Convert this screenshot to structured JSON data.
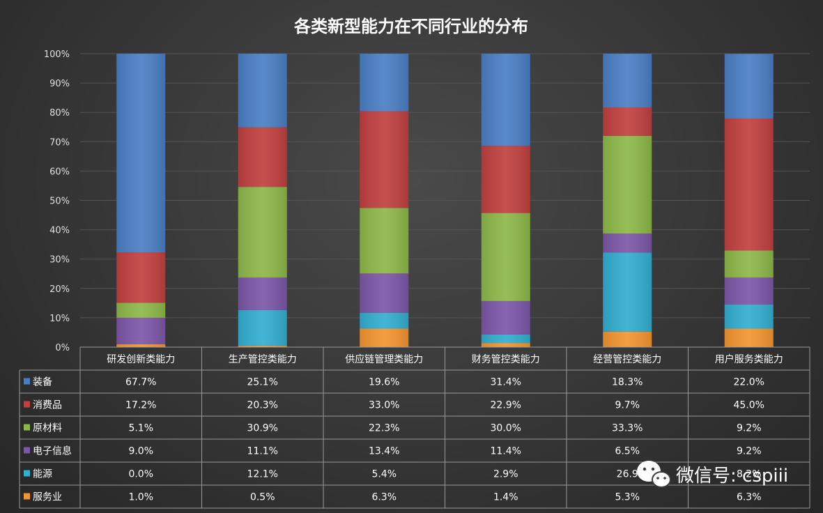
{
  "chart_data": {
    "type": "bar",
    "stacked": true,
    "title": "各类新型能力在不同行业的分布",
    "categories": [
      "研发创新类能力",
      "生产管控类能力",
      "供应链管理类能力",
      "财务管控类能力",
      "经营管控类能力",
      "用户服务类能力"
    ],
    "series": [
      {
        "name": "装备",
        "color": "#4a7fc4",
        "values": [
          67.7,
          25.1,
          19.6,
          31.4,
          18.3,
          22.0
        ],
        "labels": [
          "67.7%",
          "25.1%",
          "19.6%",
          "31.4%",
          "18.3%",
          "22.0%"
        ]
      },
      {
        "name": "消费品",
        "color": "#c0413f",
        "values": [
          17.2,
          20.3,
          33.0,
          22.9,
          9.7,
          45.0
        ],
        "labels": [
          "17.2%",
          "20.3%",
          "33.0%",
          "22.9%",
          "9.7%",
          "45.0%"
        ]
      },
      {
        "name": "原材料",
        "color": "#8db849",
        "values": [
          5.1,
          30.9,
          22.3,
          30.0,
          33.3,
          9.2
        ],
        "labels": [
          "5.1%",
          "30.9%",
          "22.3%",
          "30.0%",
          "33.3%",
          "9.2%"
        ]
      },
      {
        "name": "电子信息",
        "color": "#7c57a8",
        "values": [
          9.0,
          11.1,
          13.4,
          11.4,
          6.5,
          9.2
        ],
        "labels": [
          "9.0%",
          "11.1%",
          "13.4%",
          "11.4%",
          "6.5%",
          "9.2%"
        ]
      },
      {
        "name": "能源",
        "color": "#33aed0",
        "values": [
          0.0,
          12.1,
          5.4,
          2.9,
          26.9,
          8.2
        ],
        "labels": [
          "0.0%",
          "12.1%",
          "5.4%",
          "2.9%",
          "26.9",
          "8.2%"
        ]
      },
      {
        "name": "服务业",
        "color": "#f39531",
        "values": [
          1.0,
          0.5,
          6.3,
          1.4,
          5.3,
          6.3
        ],
        "labels": [
          "1.0%",
          "0.5%",
          "6.3%",
          "1.4%",
          "5.3%",
          "6.3%"
        ]
      }
    ],
    "ylim": [
      0,
      100
    ],
    "yticks": [
      "0%",
      "10%",
      "20%",
      "30%",
      "40%",
      "50%",
      "60%",
      "70%",
      "80%",
      "90%",
      "100%"
    ],
    "grid": true,
    "legend": "data-table"
  },
  "watermark": {
    "text": "微信号: cspiii",
    "icon": "wechat-icon"
  }
}
